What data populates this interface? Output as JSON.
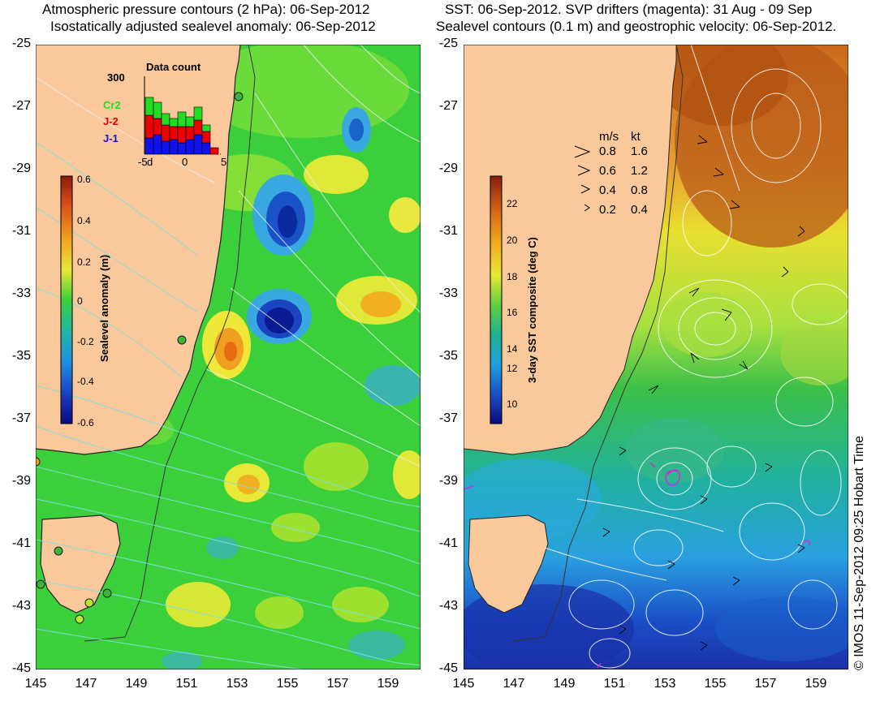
{
  "left": {
    "title_line1": "Atmospheric pressure contours (2 hPa): 06-Sep-2012",
    "title_line2": "Isostatically adjusted sealevel anomaly: 06-Sep-2012",
    "colorbar": {
      "label": "Sealevel anomaly (m)",
      "ticks": [
        "0.6",
        "0.4",
        "0.2",
        "0",
        "-0.2",
        "-0.4",
        "-0.6"
      ]
    },
    "histogram": {
      "title": "Data count",
      "ymax_label": "300",
      "series": [
        {
          "name": "Cr2",
          "color": "#22dd22"
        },
        {
          "name": "J-2",
          "color": "#ee0000"
        },
        {
          "name": "J-1",
          "color": "#1111ee"
        }
      ],
      "xticks": [
        "-5",
        "0",
        "5"
      ],
      "extra_tick": "d"
    }
  },
  "right": {
    "title_line1": "SST: 06-Sep-2012. SVP drifters (magenta): 31 Aug - 09 Sep",
    "title_line2": "Sealevel contours (0.1 m) and geostrophic velocity: 06-Sep-2012.",
    "colorbar": {
      "label": "3-day SST composite (deg C)",
      "ticks": [
        "22",
        "20",
        "18",
        "16",
        "14",
        "12",
        "10"
      ]
    },
    "velocity_legend": {
      "header_ms": "m/s",
      "header_kt": "kt",
      "rows": [
        {
          "ms": "0.8",
          "kt": "1.6"
        },
        {
          "ms": "0.6",
          "kt": "1.2"
        },
        {
          "ms": "0.4",
          "kt": "0.8"
        },
        {
          "ms": "0.2",
          "kt": "0.4"
        }
      ]
    }
  },
  "axes": {
    "y_ticks": [
      "-25",
      "-27",
      "-29",
      "-31",
      "-33",
      "-35",
      "-37",
      "-39",
      "-41",
      "-43",
      "-45"
    ],
    "x_ticks": [
      "145",
      "147",
      "149",
      "151",
      "153",
      "155",
      "157",
      "159"
    ]
  },
  "colors": {
    "land": "#f9c89b",
    "coast_green": "#3cb43c",
    "ocean_base_left": "#33cc33",
    "sst_warm": "#d4691a",
    "sst_cool": "#1e64c8"
  },
  "copyright": "© IMOS 11-Sep-2012 09:25 Hobart Time"
}
